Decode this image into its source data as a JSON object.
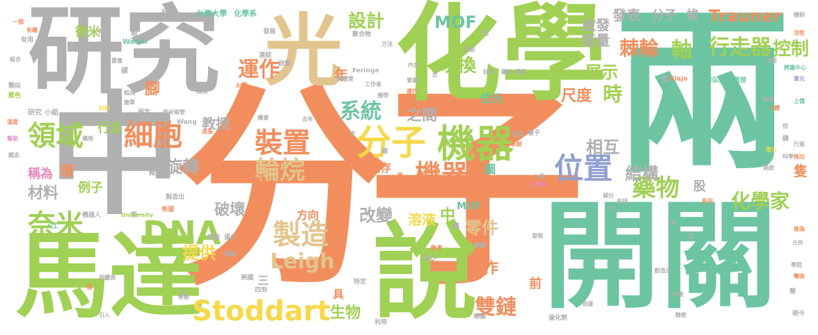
{
  "colors": {
    "orange": "#f28e5e",
    "green": "#a0d054",
    "teal": "#6cc5a0",
    "gray": "#b0b0b0",
    "tan": "#e2c58e",
    "yellow": "#f6d84a",
    "blue": "#8fa0d0",
    "pink": "#e889c0",
    "red": "#ee6055"
  },
  "words": [
    {
      "text": "分子"
    },
    {
      "text": "兩"
    },
    {
      "text": "化學"
    },
    {
      "text": "研究"
    },
    {
      "text": "光"
    },
    {
      "text": "中"
    },
    {
      "text": "開關"
    },
    {
      "text": "馬達"
    },
    {
      "text": "說"
    },
    {
      "text": "機器"
    },
    {
      "text": "分子"
    },
    {
      "text": "DNA"
    },
    {
      "text": "Stoddart"
    },
    {
      "text": "細胞"
    },
    {
      "text": "領域"
    },
    {
      "text": "奈米"
    },
    {
      "text": "裝置"
    },
    {
      "text": "輪烷"
    },
    {
      "text": "機器"
    },
    {
      "text": "位置"
    },
    {
      "text": "藥物"
    },
    {
      "text": "化學家"
    },
    {
      "text": "製造"
    },
    {
      "text": "Leigh"
    },
    {
      "text": "雙鏈"
    },
    {
      "text": "系統"
    },
    {
      "text": "運作"
    },
    {
      "text": "Trauner"
    },
    {
      "text": "行走器"
    },
    {
      "text": "控制"
    },
    {
      "text": "棘輪"
    },
    {
      "text": "軸"
    },
    {
      "text": "設計"
    },
    {
      "text": "MOF"
    },
    {
      "text": "切換"
    },
    {
      "text": "展示"
    },
    {
      "text": "尺度"
    },
    {
      "text": "時"
    },
    {
      "text": "相互"
    },
    {
      "text": "結構"
    },
    {
      "text": "旋轉"
    },
    {
      "text": "教授"
    },
    {
      "text": "之間"
    },
    {
      "text": "改變"
    },
    {
      "text": "零件"
    },
    {
      "text": "溶液"
    },
    {
      "text": "中"
    },
    {
      "text": "MOF"
    },
    {
      "text": "破壞"
    },
    {
      "text": "方向"
    },
    {
      "text": "提供"
    },
    {
      "text": "生物"
    },
    {
      "text": "工作"
    },
    {
      "text": "材料"
    },
    {
      "text": "稱為"
    },
    {
      "text": "環"
    },
    {
      "text": "例子"
    },
    {
      "text": "微米"
    },
    {
      "text": "行走"
    },
    {
      "text": "腳"
    },
    {
      "text": "年"
    },
    {
      "text": "啟發"
    },
    {
      "text": "能量"
    },
    {
      "text": "發表"
    },
    {
      "text": "分子"
    },
    {
      "text": "梭"
    },
    {
      "text": "圖"
    },
    {
      "text": "儲存"
    },
    {
      "text": "股"
    },
    {
      "text": "隻"
    },
    {
      "text": "前"
    },
    {
      "text": "具"
    },
    {
      "text": "三"
    },
    {
      "text": "位元"
    },
    {
      "text": "台灣大學"
    },
    {
      "text": "化學系"
    },
    {
      "text": "狀態"
    },
    {
      "text": "Walter"
    },
    {
      "text": "Feringa"
    },
    {
      "text": "Wang"
    },
    {
      "text": "Klajn"
    },
    {
      "text": "李弘文"
    },
    {
      "text": "教授"
    },
    {
      "text": "研究"
    },
    {
      "text": "小組"
    },
    {
      "text": "類似"
    },
    {
      "text": "藍色"
    },
    {
      "text": "有用"
    },
    {
      "text": "聚合物"
    },
    {
      "text": "發展"
    },
    {
      "text": "機器人"
    },
    {
      "text": "第一"
    },
    {
      "text": "釋放"
    },
    {
      "text": "製造出"
    },
    {
      "text": "希望"
    },
    {
      "text": "人工"
    },
    {
      "text": "University"
    },
    {
      "text": "致動"
    },
    {
      "text": "蛋白"
    },
    {
      "text": "組裝"
    },
    {
      "text": "美國"
    },
    {
      "text": "四到"
    },
    {
      "text": "特定"
    },
    {
      "text": "利用"
    },
    {
      "text": "相關"
    },
    {
      "text": "參考"
    },
    {
      "text": "實驗"
    },
    {
      "text": "核心"
    },
    {
      "text": "藥"
    },
    {
      "text": "管子"
    },
    {
      "text": "合成"
    },
    {
      "text": "新創"
    },
    {
      "text": "人員"
    },
    {
      "text": "化學系"
    },
    {
      "text": "細分"
    },
    {
      "text": "系列"
    },
    {
      "text": "發現"
    },
    {
      "text": "包括"
    },
    {
      "text": "開啟"
    },
    {
      "text": "科學"
    },
    {
      "text": "潛力"
    },
    {
      "text": "催化劑"
    },
    {
      "text": "背後"
    },
    {
      "text": "到達"
    },
    {
      "text": "創造出"
    },
    {
      "text": "元件"
    },
    {
      "text": "做為"
    },
    {
      "text": "辨識中心"
    },
    {
      "text": "單元"
    },
    {
      "text": "上億"
    },
    {
      "text": "活性"
    },
    {
      "text": "機制"
    },
    {
      "text": "有機"
    },
    {
      "text": "有趣"
    },
    {
      "text": "布朗"
    },
    {
      "text": "方法"
    },
    {
      "text": "啟動"
    },
    {
      "text": "連結"
    },
    {
      "text": "組成"
    },
    {
      "text": "機械"
    },
    {
      "text": "火箭"
    },
    {
      "text": "研發"
    },
    {
      "text": "人體"
    },
    {
      "text": "固定"
    },
    {
      "text": "機會"
    },
    {
      "text": "去年"
    },
    {
      "text": "內含"
    },
    {
      "text": "實驗室"
    },
    {
      "text": "工作者"
    },
    {
      "text": "播帶"
    },
    {
      "text": "會議"
    },
    {
      "text": "運作"
    },
    {
      "text": "好像"
    },
    {
      "text": "顯示"
    },
    {
      "text": "路程"
    },
    {
      "text": "光照"
    },
    {
      "text": "鏈"
    },
    {
      "text": "行進"
    },
    {
      "text": "拖出"
    },
    {
      "text": "好似"
    },
    {
      "text": "簡單"
    },
    {
      "text": "構想"
    },
    {
      "text": "奈米碳管"
    },
    {
      "text": "成長"
    },
    {
      "text": "一個"
    },
    {
      "text": "組合"
    },
    {
      "text": "溫度"
    },
    {
      "text": "幫助"
    },
    {
      "text": "概念"
    },
    {
      "text": "重複"
    },
    {
      "text": "感測"
    },
    {
      "text": "精密"
    },
    {
      "text": "現今"
    },
    {
      "text": "類"
    },
    {
      "text": "學院"
    },
    {
      "text": "部份"
    },
    {
      "text": "引入"
    },
    {
      "text": "彎曲"
    },
    {
      "text": "移動"
    },
    {
      "text": "做"
    },
    {
      "text": "位"
    },
    {
      "text": "化"
    },
    {
      "text": "五"
    },
    {
      "text": "次"
    },
    {
      "text": "更"
    },
    {
      "text": "般"
    },
    {
      "text": "碳"
    },
    {
      "text": "長"
    },
    {
      "text": "正"
    },
    {
      "text": "端"
    },
    {
      "text": "文"
    },
    {
      "text": "約"
    },
    {
      "text": "倍"
    },
    {
      "text": "1R"
    }
  ]
}
